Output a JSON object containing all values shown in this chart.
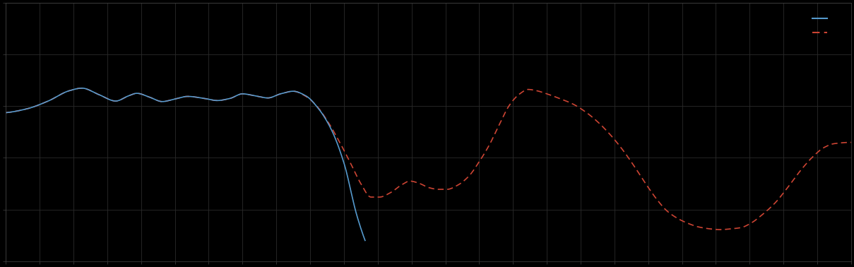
{
  "background_color": "#000000",
  "axes_bg_color": "#000000",
  "grid_color": "#2a2a2a",
  "line1_color": "#5599cc",
  "line2_color": "#cc4433",
  "figsize": [
    12.09,
    3.78
  ],
  "dpi": 100,
  "xlim": [
    0,
    1
  ],
  "ylim": [
    0,
    1
  ],
  "xticks_count": 26,
  "yticks_count": 6
}
